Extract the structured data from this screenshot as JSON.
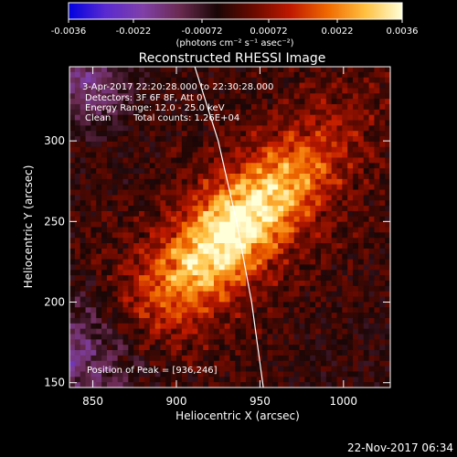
{
  "colorbar": {
    "ticks": [
      "-0.0036",
      "-0.0022",
      "-0.00072",
      "0.00072",
      "0.0022",
      "0.0036"
    ],
    "tick_values": [
      -0.0036,
      -0.0022,
      -0.00072,
      0.00072,
      0.0022,
      0.0036
    ],
    "range": [
      -0.0036,
      0.0036
    ],
    "units_label": "(photons cm⁻² s⁻¹ asec⁻²)"
  },
  "chart_data": {
    "type": "heatmap",
    "title": "Reconstructed RHESSI Image",
    "xlabel": "Heliocentric X (arcsec)",
    "ylabel": "Heliocentric Y (arcsec)",
    "x_ticks": [
      "850",
      "900",
      "950",
      "1000"
    ],
    "x_tick_values": [
      850,
      900,
      950,
      1000
    ],
    "y_ticks": [
      "150",
      "200",
      "250",
      "300"
    ],
    "y_tick_values": [
      150,
      200,
      250,
      300
    ],
    "xlim": [
      836,
      1028
    ],
    "ylim": [
      147,
      346
    ],
    "annotations": [
      "3-Apr-2017 22:20:28.000 to 22:30:28.000",
      "Detectors: 3F 6F 8F, Att 0",
      "Energy Range: 12.0 - 25.0 keV",
      "Clean",
      "Total counts: 1.26E+04"
    ],
    "peak_label": "Position of Peak = [936,246]",
    "peak": {
      "x": 936,
      "y": 246
    },
    "limb_points": [
      [
        911,
        346
      ],
      [
        925,
        300
      ],
      [
        936,
        250
      ],
      [
        945,
        200
      ],
      [
        952,
        147
      ]
    ],
    "colormap": [
      "#0000e0",
      "#5a2ad0",
      "#8040a8",
      "#6a2a50",
      "#1a0606",
      "#6a0a00",
      "#c01a00",
      "#f06a00",
      "#ffc040",
      "#ffffd8"
    ]
  },
  "footer": {
    "timestamp": "22-Nov-2017 06:34"
  }
}
